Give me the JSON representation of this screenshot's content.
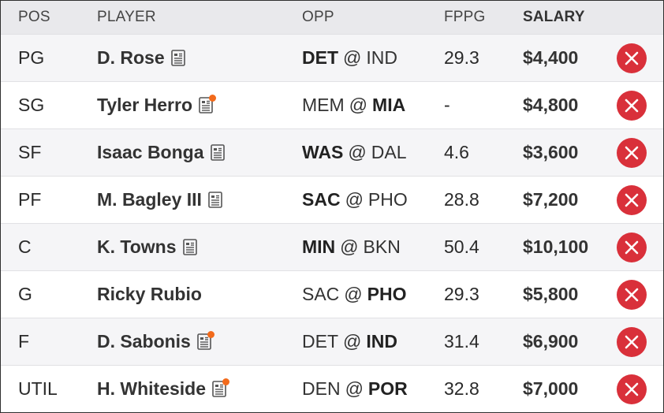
{
  "headers": {
    "pos": "POS",
    "player": "PLAYER",
    "opp": "OPP",
    "fppg": "FPPG",
    "salary": "SALARY"
  },
  "colors": {
    "remove": "#d9303a",
    "news_alert": "#f26a1b"
  },
  "rows": [
    {
      "pos": "PG",
      "player": "D. Rose",
      "news_icon": true,
      "news_alert": false,
      "away": "DET",
      "at": "@",
      "home": "IND",
      "bold": "away",
      "fppg": "29.3",
      "salary": "$4,400"
    },
    {
      "pos": "SG",
      "player": "Tyler Herro",
      "news_icon": true,
      "news_alert": true,
      "away": "MEM",
      "at": "@",
      "home": "MIA",
      "bold": "home",
      "fppg": "-",
      "salary": "$4,800"
    },
    {
      "pos": "SF",
      "player": "Isaac Bonga",
      "news_icon": true,
      "news_alert": false,
      "away": "WAS",
      "at": "@",
      "home": "DAL",
      "bold": "away",
      "fppg": "4.6",
      "salary": "$3,600"
    },
    {
      "pos": "PF",
      "player": "M. Bagley III",
      "news_icon": true,
      "news_alert": false,
      "away": "SAC",
      "at": "@",
      "home": "PHO",
      "bold": "away",
      "fppg": "28.8",
      "salary": "$7,200"
    },
    {
      "pos": "C",
      "player": "K. Towns",
      "news_icon": true,
      "news_alert": false,
      "away": "MIN",
      "at": "@",
      "home": "BKN",
      "bold": "away",
      "fppg": "50.4",
      "salary": "$10,100"
    },
    {
      "pos": "G",
      "player": "Ricky Rubio",
      "news_icon": false,
      "news_alert": false,
      "away": "SAC",
      "at": "@",
      "home": "PHO",
      "bold": "home",
      "fppg": "29.3",
      "salary": "$5,800"
    },
    {
      "pos": "F",
      "player": "D. Sabonis",
      "news_icon": true,
      "news_alert": true,
      "away": "DET",
      "at": "@",
      "home": "IND",
      "bold": "home",
      "fppg": "31.4",
      "salary": "$6,900"
    },
    {
      "pos": "UTIL",
      "player": "H. Whiteside",
      "news_icon": true,
      "news_alert": true,
      "away": "DEN",
      "at": "@",
      "home": "POR",
      "bold": "home",
      "fppg": "32.8",
      "salary": "$7,000"
    }
  ]
}
